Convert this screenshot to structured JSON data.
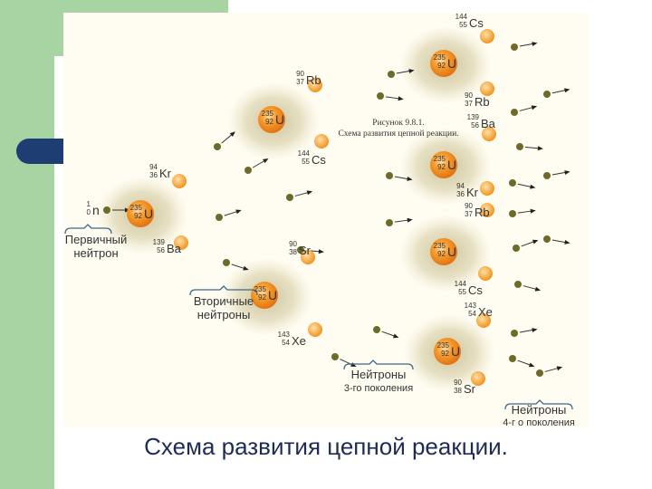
{
  "slide_title": "Схема развития цепной реакции.",
  "figure_caption": [
    "Рисунок 9.8.1.",
    "Схема развития цепной реакции."
  ],
  "isotopes": {
    "u": {
      "mass": "235",
      "z": "92",
      "symbol": "U"
    },
    "n": {
      "mass": "1",
      "z": "0",
      "symbol": "n"
    },
    "kr": {
      "mass": "94",
      "z": "36",
      "symbol": "Kr"
    },
    "ba": {
      "mass": "139",
      "z": "56",
      "symbol": "Ba"
    },
    "rb": {
      "mass": "90",
      "z": "37",
      "symbol": "Rb"
    },
    "cs": {
      "mass": "144",
      "z": "55",
      "symbol": "Cs"
    },
    "sr": {
      "mass": "90",
      "z": "38",
      "symbol": "Sr"
    },
    "xe": {
      "mass": "143",
      "z": "54",
      "symbol": "Xe"
    }
  },
  "labels": {
    "primary": [
      "Первичный",
      "нейтрон"
    ],
    "secondary": [
      "Вторичные",
      "нейтроны"
    ],
    "third": [
      "Нейтроны",
      "3-го поколения"
    ],
    "fourth": [
      "Нейтроны",
      "4-г о поколения"
    ]
  },
  "colors": {
    "nucleus": "#f2901e",
    "fragment": "#f5a020",
    "neutron": "#6d6a2a",
    "glow": "#cfc6a0",
    "label": "#333333",
    "slide_title": "#1d2b55",
    "bracket": "#3a6a8a"
  }
}
